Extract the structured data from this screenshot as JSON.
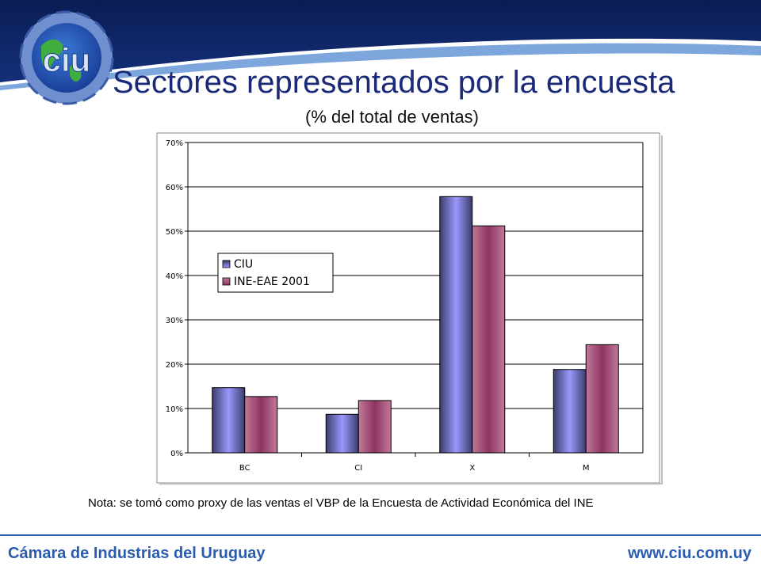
{
  "slide": {
    "title": "Sectores representados por la encuesta",
    "subtitle": "(% del total de ventas)",
    "note": "Nota: se tomó como proxy de las ventas el VBP de la Encuesta de Actividad Económica del INE",
    "footer_left": "Cámara de Industrias del Uruguay",
    "footer_right": "www.ciu.com.uy",
    "logo_text": "ciu"
  },
  "colors": {
    "header_navy": "#0f2263",
    "swoosh_light": "#7da7dc",
    "accent_blue": "#2a5db0",
    "series_1_light": "#9999ff",
    "series_1_dark": "#3c3c6b",
    "series_2_light": "#c07a9a",
    "series_2_dark": "#8e3461"
  },
  "chart_data": {
    "type": "bar",
    "categories": [
      "BC",
      "CI",
      "X",
      "M"
    ],
    "series": [
      {
        "name": "CIU",
        "values": [
          14.7,
          8.7,
          57.8,
          18.8
        ]
      },
      {
        "name": "INE-EAE 2001",
        "values": [
          12.7,
          11.8,
          51.2,
          24.4
        ]
      }
    ],
    "yticks": [
      "0%",
      "10%",
      "20%",
      "30%",
      "40%",
      "50%",
      "60%",
      "70%"
    ],
    "ylim": [
      0,
      70
    ],
    "grid": true,
    "legend_position": "left"
  }
}
